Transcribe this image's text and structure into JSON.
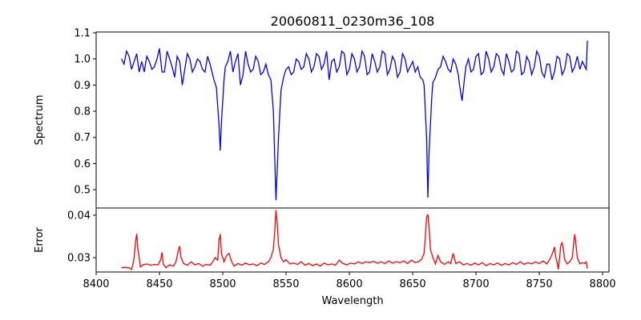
{
  "chart_data": [
    {
      "type": "line",
      "title": "20060811_0230m36_108",
      "xlabel": "",
      "ylabel": "Spectrum",
      "xlim": [
        8400,
        8805
      ],
      "ylim": [
        0.43,
        1.103
      ],
      "yticks": [
        0.5,
        0.6,
        0.7,
        0.8,
        0.9,
        1.0,
        1.1
      ],
      "ytick_labels": [
        "0.5",
        "0.6",
        "0.7",
        "0.8",
        "0.9",
        "1.0",
        "1.1"
      ],
      "color": "#0000ff",
      "points": [
        [
          8420,
          1.0
        ],
        [
          8422,
          0.98
        ],
        [
          8424,
          1.03
        ],
        [
          8426,
          1.01
        ],
        [
          8428,
          0.96
        ],
        [
          8430,
          0.99
        ],
        [
          8432,
          1.02
        ],
        [
          8434,
          0.95
        ],
        [
          8436,
          0.99
        ],
        [
          8438,
          0.95
        ],
        [
          8440,
          1.01
        ],
        [
          8442,
          0.99
        ],
        [
          8444,
          0.96
        ],
        [
          8446,
          0.97
        ],
        [
          8448,
          1.0
        ],
        [
          8450,
          1.04
        ],
        [
          8452,
          0.95
        ],
        [
          8454,
          0.95
        ],
        [
          8456,
          1.03
        ],
        [
          8458,
          1.0
        ],
        [
          8460,
          0.97
        ],
        [
          8462,
          0.93
        ],
        [
          8464,
          1.01
        ],
        [
          8466,
          0.99
        ],
        [
          8468,
          0.9
        ],
        [
          8470,
          0.96
        ],
        [
          8472,
          1.02
        ],
        [
          8474,
          1.0
        ],
        [
          8476,
          0.95
        ],
        [
          8478,
          0.97
        ],
        [
          8480,
          1.0
        ],
        [
          8482,
          0.99
        ],
        [
          8484,
          0.96
        ],
        [
          8486,
          0.95
        ],
        [
          8488,
          1.01
        ],
        [
          8490,
          0.98
        ],
        [
          8492,
          0.94
        ],
        [
          8493,
          0.92
        ],
        [
          8495,
          0.89
        ],
        [
          8497,
          0.75
        ],
        [
          8498,
          0.65
        ],
        [
          8499,
          0.76
        ],
        [
          8501,
          0.92
        ],
        [
          8502,
          0.97
        ],
        [
          8504,
          0.99
        ],
        [
          8506,
          1.03
        ],
        [
          8508,
          0.95
        ],
        [
          8510,
          0.99
        ],
        [
          8512,
          1.02
        ],
        [
          8514,
          0.9
        ],
        [
          8516,
          0.94
        ],
        [
          8518,
          1.03
        ],
        [
          8520,
          0.98
        ],
        [
          8522,
          0.95
        ],
        [
          8524,
          0.96
        ],
        [
          8526,
          1.01
        ],
        [
          8528,
          0.99
        ],
        [
          8530,
          0.94
        ],
        [
          8532,
          0.95
        ],
        [
          8534,
          0.98
        ],
        [
          8536,
          0.94
        ],
        [
          8538,
          0.92
        ],
        [
          8540,
          0.8
        ],
        [
          8542,
          0.46
        ],
        [
          8544,
          0.7
        ],
        [
          8546,
          0.88
        ],
        [
          8548,
          0.93
        ],
        [
          8550,
          0.96
        ],
        [
          8552,
          0.97
        ],
        [
          8554,
          0.94
        ],
        [
          8556,
          0.95
        ],
        [
          8558,
          1.0
        ],
        [
          8560,
          0.99
        ],
        [
          8562,
          0.96
        ],
        [
          8564,
          0.97
        ],
        [
          8566,
          1.02
        ],
        [
          8568,
          1.0
        ],
        [
          8570,
          0.95
        ],
        [
          8572,
          0.97
        ],
        [
          8574,
          1.02
        ],
        [
          8576,
          1.01
        ],
        [
          8578,
          0.96
        ],
        [
          8580,
          0.98
        ],
        [
          8582,
          1.03
        ],
        [
          8584,
          0.92
        ],
        [
          8586,
          0.99
        ],
        [
          8588,
          1.0
        ],
        [
          8590,
          0.95
        ],
        [
          8592,
          0.97
        ],
        [
          8594,
          1.03
        ],
        [
          8596,
          1.02
        ],
        [
          8598,
          0.94
        ],
        [
          8600,
          0.96
        ],
        [
          8602,
          1.02
        ],
        [
          8604,
          1.0
        ],
        [
          8606,
          0.95
        ],
        [
          8608,
          0.97
        ],
        [
          8610,
          1.03
        ],
        [
          8612,
          1.01
        ],
        [
          8614,
          0.94
        ],
        [
          8616,
          0.95
        ],
        [
          8618,
          1.02
        ],
        [
          8620,
          0.99
        ],
        [
          8622,
          0.95
        ],
        [
          8624,
          0.97
        ],
        [
          8626,
          1.03
        ],
        [
          8628,
          1.02
        ],
        [
          8630,
          0.94
        ],
        [
          8632,
          0.96
        ],
        [
          8634,
          1.01
        ],
        [
          8636,
          0.99
        ],
        [
          8638,
          0.93
        ],
        [
          8640,
          0.95
        ],
        [
          8642,
          1.02
        ],
        [
          8644,
          1.0
        ],
        [
          8646,
          0.95
        ],
        [
          8648,
          0.97
        ],
        [
          8650,
          0.99
        ],
        [
          8652,
          0.95
        ],
        [
          8654,
          0.97
        ],
        [
          8656,
          0.93
        ],
        [
          8658,
          0.92
        ],
        [
          8659,
          0.9
        ],
        [
          8661,
          0.7
        ],
        [
          8662,
          0.47
        ],
        [
          8663,
          0.65
        ],
        [
          8665,
          0.85
        ],
        [
          8666,
          0.91
        ],
        [
          8668,
          0.93
        ],
        [
          8670,
          0.96
        ],
        [
          8672,
          0.97
        ],
        [
          8674,
          1.01
        ],
        [
          8676,
          0.99
        ],
        [
          8678,
          0.96
        ],
        [
          8680,
          0.95
        ],
        [
          8682,
          1.0
        ],
        [
          8684,
          0.98
        ],
        [
          8686,
          0.94
        ],
        [
          8687,
          0.9
        ],
        [
          8689,
          0.84
        ],
        [
          8691,
          0.93
        ],
        [
          8692,
          0.97
        ],
        [
          8694,
          1.0
        ],
        [
          8696,
          0.95
        ],
        [
          8698,
          0.96
        ],
        [
          8700,
          1.01
        ],
        [
          8702,
          1.02
        ],
        [
          8704,
          0.94
        ],
        [
          8706,
          0.95
        ],
        [
          8708,
          1.03
        ],
        [
          8710,
          1.0
        ],
        [
          8712,
          0.95
        ],
        [
          8714,
          0.97
        ],
        [
          8716,
          1.02
        ],
        [
          8718,
          1.01
        ],
        [
          8720,
          0.96
        ],
        [
          8722,
          0.94
        ],
        [
          8724,
          1.02
        ],
        [
          8726,
          0.99
        ],
        [
          8728,
          0.95
        ],
        [
          8730,
          0.96
        ],
        [
          8732,
          1.03
        ],
        [
          8734,
          1.02
        ],
        [
          8736,
          0.94
        ],
        [
          8738,
          0.95
        ],
        [
          8740,
          1.01
        ],
        [
          8742,
          0.99
        ],
        [
          8744,
          0.94
        ],
        [
          8746,
          0.97
        ],
        [
          8748,
          1.03
        ],
        [
          8750,
          1.01
        ],
        [
          8752,
          0.95
        ],
        [
          8754,
          0.93
        ],
        [
          8756,
          0.98
        ],
        [
          8758,
          0.98
        ],
        [
          8760,
          0.92
        ],
        [
          8762,
          0.95
        ],
        [
          8764,
          1.01
        ],
        [
          8766,
          1.0
        ],
        [
          8768,
          0.94
        ],
        [
          8770,
          0.96
        ],
        [
          8772,
          1.02
        ],
        [
          8774,
          1.01
        ],
        [
          8776,
          0.95
        ],
        [
          8778,
          0.97
        ],
        [
          8780,
          1.01
        ],
        [
          8782,
          0.96
        ],
        [
          8784,
          0.99
        ],
        [
          8786,
          0.97
        ],
        [
          8787,
          0.96
        ],
        [
          8788,
          1.07
        ]
      ]
    },
    {
      "type": "line",
      "title": "",
      "xlabel": "Wavelength",
      "ylabel": "Error",
      "xlim": [
        8400,
        8805
      ],
      "ylim": [
        0.0266,
        0.0417
      ],
      "yticks": [
        0.03,
        0.04
      ],
      "ytick_labels": [
        "0.03",
        "0.04"
      ],
      "xticks": [
        8400,
        8450,
        8500,
        8550,
        8600,
        8650,
        8700,
        8750,
        8800
      ],
      "xtick_labels": [
        "8400",
        "8450",
        "8500",
        "8550",
        "8600",
        "8650",
        "8700",
        "8750",
        "8800"
      ],
      "color": "#ff0000",
      "points": [
        [
          8420,
          0.0276
        ],
        [
          8423,
          0.0277
        ],
        [
          8426,
          0.0276
        ],
        [
          8428,
          0.0272
        ],
        [
          8429,
          0.0283
        ],
        [
          8430,
          0.03
        ],
        [
          8431,
          0.0335
        ],
        [
          8432,
          0.0356
        ],
        [
          8433,
          0.032
        ],
        [
          8435,
          0.0278
        ],
        [
          8437,
          0.0283
        ],
        [
          8440,
          0.0285
        ],
        [
          8443,
          0.0282
        ],
        [
          8446,
          0.0284
        ],
        [
          8449,
          0.0283
        ],
        [
          8451,
          0.0295
        ],
        [
          8452,
          0.0312
        ],
        [
          8453,
          0.0285
        ],
        [
          8455,
          0.0276
        ],
        [
          8458,
          0.0283
        ],
        [
          8461,
          0.028
        ],
        [
          8463,
          0.029
        ],
        [
          8465,
          0.0318
        ],
        [
          8466,
          0.0327
        ],
        [
          8467,
          0.03
        ],
        [
          8469,
          0.0286
        ],
        [
          8472,
          0.0282
        ],
        [
          8475,
          0.029
        ],
        [
          8478,
          0.0283
        ],
        [
          8481,
          0.0286
        ],
        [
          8484,
          0.028
        ],
        [
          8487,
          0.0284
        ],
        [
          8490,
          0.0282
        ],
        [
          8492,
          0.029
        ],
        [
          8494,
          0.03
        ],
        [
          8496,
          0.0294
        ],
        [
          8497,
          0.034
        ],
        [
          8498,
          0.0355
        ],
        [
          8499,
          0.031
        ],
        [
          8501,
          0.029
        ],
        [
          8503,
          0.0305
        ],
        [
          8505,
          0.031
        ],
        [
          8507,
          0.029
        ],
        [
          8509,
          0.028
        ],
        [
          8512,
          0.0286
        ],
        [
          8515,
          0.0282
        ],
        [
          8518,
          0.0287
        ],
        [
          8521,
          0.0283
        ],
        [
          8524,
          0.0285
        ],
        [
          8527,
          0.0281
        ],
        [
          8530,
          0.0287
        ],
        [
          8533,
          0.0284
        ],
        [
          8536,
          0.029
        ],
        [
          8538,
          0.03
        ],
        [
          8540,
          0.032
        ],
        [
          8541,
          0.036
        ],
        [
          8542,
          0.0412
        ],
        [
          8543,
          0.038
        ],
        [
          8544,
          0.033
        ],
        [
          8546,
          0.03
        ],
        [
          8548,
          0.029
        ],
        [
          8550,
          0.0295
        ],
        [
          8553,
          0.0285
        ],
        [
          8556,
          0.0287
        ],
        [
          8559,
          0.0284
        ],
        [
          8562,
          0.029
        ],
        [
          8565,
          0.0282
        ],
        [
          8568,
          0.0286
        ],
        [
          8571,
          0.0281
        ],
        [
          8574,
          0.0285
        ],
        [
          8577,
          0.028
        ],
        [
          8580,
          0.0287
        ],
        [
          8583,
          0.0283
        ],
        [
          8586,
          0.0285
        ],
        [
          8589,
          0.0282
        ],
        [
          8592,
          0.0294
        ],
        [
          8595,
          0.0286
        ],
        [
          8598,
          0.0283
        ],
        [
          8601,
          0.0287
        ],
        [
          8604,
          0.0285
        ],
        [
          8607,
          0.029
        ],
        [
          8610,
          0.0286
        ],
        [
          8613,
          0.029
        ],
        [
          8616,
          0.0288
        ],
        [
          8619,
          0.0291
        ],
        [
          8622,
          0.0287
        ],
        [
          8625,
          0.029
        ],
        [
          8628,
          0.0286
        ],
        [
          8631,
          0.0292
        ],
        [
          8634,
          0.0287
        ],
        [
          8637,
          0.029
        ],
        [
          8640,
          0.0288
        ],
        [
          8643,
          0.0292
        ],
        [
          8646,
          0.0286
        ],
        [
          8649,
          0.0294
        ],
        [
          8652,
          0.0288
        ],
        [
          8655,
          0.0291
        ],
        [
          8657,
          0.0296
        ],
        [
          8659,
          0.031
        ],
        [
          8660,
          0.035
        ],
        [
          8661,
          0.0395
        ],
        [
          8662,
          0.0402
        ],
        [
          8663,
          0.037
        ],
        [
          8664,
          0.032
        ],
        [
          8666,
          0.03
        ],
        [
          8668,
          0.0285
        ],
        [
          8670,
          0.0305
        ],
        [
          8672,
          0.029
        ],
        [
          8675,
          0.0284
        ],
        [
          8678,
          0.029
        ],
        [
          8680,
          0.0286
        ],
        [
          8682,
          0.031
        ],
        [
          8684,
          0.0286
        ],
        [
          8687,
          0.029
        ],
        [
          8690,
          0.0283
        ],
        [
          8693,
          0.0286
        ],
        [
          8696,
          0.0282
        ],
        [
          8699,
          0.0287
        ],
        [
          8702,
          0.0283
        ],
        [
          8705,
          0.0288
        ],
        [
          8708,
          0.0281
        ],
        [
          8711,
          0.0286
        ],
        [
          8714,
          0.0283
        ],
        [
          8717,
          0.0287
        ],
        [
          8720,
          0.0282
        ],
        [
          8723,
          0.0286
        ],
        [
          8726,
          0.0283
        ],
        [
          8729,
          0.0288
        ],
        [
          8732,
          0.0284
        ],
        [
          8735,
          0.029
        ],
        [
          8738,
          0.0284
        ],
        [
          8741,
          0.0288
        ],
        [
          8744,
          0.0285
        ],
        [
          8747,
          0.029
        ],
        [
          8750,
          0.0286
        ],
        [
          8753,
          0.0292
        ],
        [
          8756,
          0.0285
        ],
        [
          8759,
          0.03
        ],
        [
          8761,
          0.0315
        ],
        [
          8762,
          0.0325
        ],
        [
          8763,
          0.03
        ],
        [
          8764,
          0.029
        ],
        [
          8765,
          0.0272
        ],
        [
          8766,
          0.03
        ],
        [
          8767,
          0.033
        ],
        [
          8768,
          0.0335
        ],
        [
          8769,
          0.032
        ],
        [
          8770,
          0.0295
        ],
        [
          8772,
          0.0285
        ],
        [
          8774,
          0.029
        ],
        [
          8776,
          0.03
        ],
        [
          8777,
          0.033
        ],
        [
          8778,
          0.0355
        ],
        [
          8779,
          0.033
        ],
        [
          8780,
          0.03
        ],
        [
          8782,
          0.0285
        ],
        [
          8784,
          0.0288
        ],
        [
          8786,
          0.0286
        ],
        [
          8787,
          0.029
        ],
        [
          8788,
          0.0274
        ]
      ]
    }
  ]
}
